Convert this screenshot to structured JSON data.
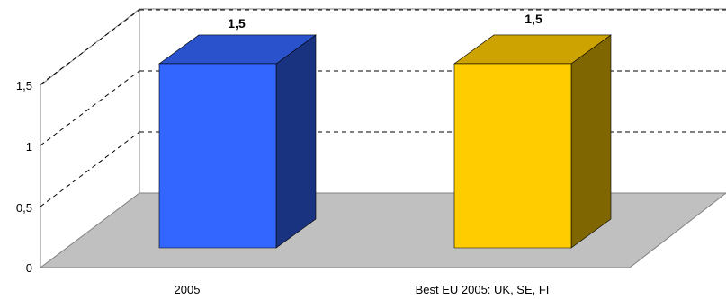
{
  "chart_data": {
    "type": "bar",
    "categories": [
      "2005",
      "Best EU 2005: UK, SE, FI"
    ],
    "values": [
      1.5,
      1.5
    ],
    "data_labels": [
      "1,5",
      "1,5"
    ],
    "y_ticks": [
      "0",
      "0,5",
      "1",
      "1,5"
    ],
    "ylim": [
      0,
      2
    ],
    "grid": true,
    "three_d": true,
    "colors": {
      "bar1_front": "#3366ff",
      "bar1_top": "#2a52cc",
      "bar1_side": "#1a3380",
      "bar2_front": "#ffcc00",
      "bar2_top": "#cca300",
      "bar2_side": "#806600",
      "floor": "#c0c0c0"
    }
  }
}
